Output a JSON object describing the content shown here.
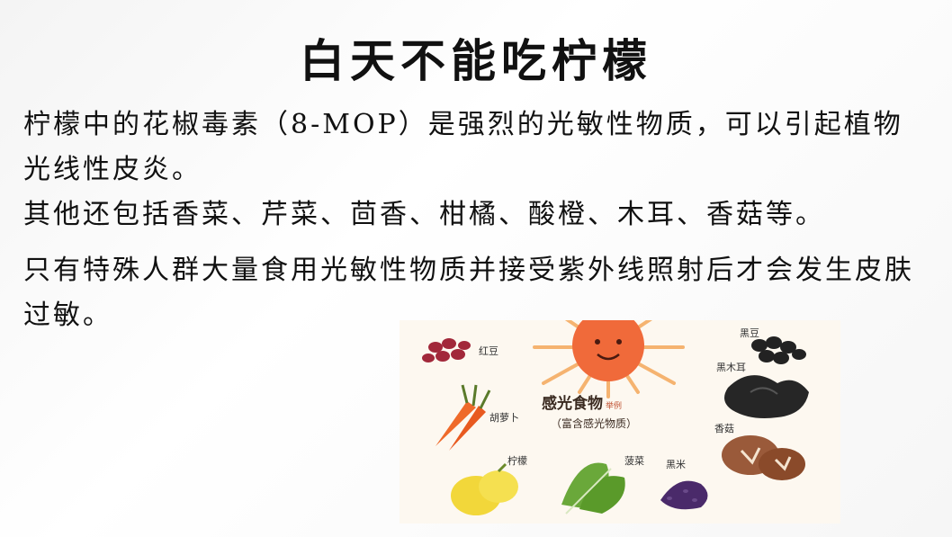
{
  "slide": {
    "title": "白天不能吃柠檬",
    "paragraphs": [
      "柠檬中的花椒毒素（8-MOP）是强烈的光敏性物质，可以引起植物光线性皮炎。",
      "其他还包括香菜、芹菜、茴香、柑橘、酸橙、木耳、香菇等。",
      "只有特殊人群大量食用光敏性物质并接受紫外线照射后才会发生皮肤过敏。"
    ]
  },
  "illustration": {
    "center_title": "感光食物",
    "center_tag": "举例",
    "center_subtitle": "（富含感光物质）",
    "labels": {
      "red_bean": "红豆",
      "black_bean": "黑豆",
      "black_fungus": "黑木耳",
      "carrot": "胡萝卜",
      "shiitake": "香菇",
      "lemon": "柠檬",
      "spinach": "菠菜",
      "black_rice": "黑米"
    },
    "colors": {
      "sun": "#f06a3a",
      "rays": "#f4a85a",
      "lemon": "#f2d73a",
      "carrot": "#ef6a2a",
      "spinach": "#6aa83a",
      "fungus": "#222222",
      "black_rice": "#4a2a6a",
      "red_bean": "#a2283a",
      "mushroom": "#9a5a3a"
    }
  }
}
